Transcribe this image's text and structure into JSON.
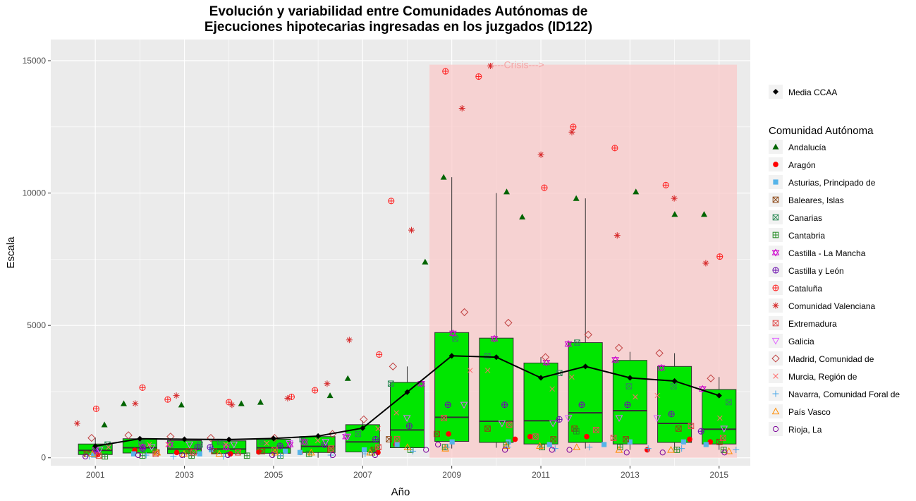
{
  "title_line1": "Evolución y variabilidad entre Comunidades Autónomas de",
  "title_line2": "Ejecuciones hipotecarias ingresadas en los juzgados (ID122)",
  "colors": {
    "panel": "#ebebeb",
    "grid": "#ffffff",
    "box_fill": "#00e600",
    "crisis_fill": "#f9c9c9",
    "mean_line": "#000000"
  },
  "chart_data": {
    "type": "box",
    "xlabel": "Año",
    "ylabel": "Escala",
    "x_tick_labels": [
      "2001",
      "2003",
      "2005",
      "2007",
      "2009",
      "2011",
      "2013",
      "2015"
    ],
    "y_tick_labels": [
      "0",
      "5000",
      "10000",
      "15000"
    ],
    "xlim": [
      2000.0,
      2015.7
    ],
    "ylim": [
      -300,
      15800
    ],
    "grid": true,
    "crisis": {
      "label": "<---Crisis--->",
      "x_start": 2008.5,
      "x_end": 2015.4,
      "y_top": 14850
    },
    "years": [
      2001,
      2002,
      2003,
      2004,
      2005,
      2006,
      2007,
      2008,
      2009,
      2010,
      2011,
      2012,
      2013,
      2014,
      2015
    ],
    "boxes": [
      {
        "year": 2001,
        "q1": 120,
        "median": 280,
        "q3": 520,
        "low": 0,
        "high": 770
      },
      {
        "year": 2002,
        "q1": 180,
        "median": 380,
        "q3": 720,
        "low": 0,
        "high": 770
      },
      {
        "year": 2003,
        "q1": 160,
        "median": 330,
        "q3": 650,
        "low": 0,
        "high": 770
      },
      {
        "year": 2004,
        "q1": 160,
        "median": 330,
        "q3": 640,
        "low": 0,
        "high": 740
      },
      {
        "year": 2005,
        "q1": 170,
        "median": 380,
        "q3": 700,
        "low": 0,
        "high": 770
      },
      {
        "year": 2006,
        "q1": 200,
        "median": 430,
        "q3": 800,
        "low": 0,
        "high": 880
      },
      {
        "year": 2007,
        "q1": 220,
        "median": 600,
        "q3": 1250,
        "low": 0,
        "high": 1400
      },
      {
        "year": 2008,
        "q1": 380,
        "median": 1050,
        "q3": 2850,
        "low": 300,
        "high": 3450
      },
      {
        "year": 2009,
        "q1": 620,
        "median": 1530,
        "q3": 4730,
        "low": 350,
        "high": 10600
      },
      {
        "year": 2010,
        "q1": 580,
        "median": 1380,
        "q3": 4520,
        "low": 380,
        "high": 10000
      },
      {
        "year": 2011,
        "q1": 520,
        "median": 1400,
        "q3": 3580,
        "low": 380,
        "high": 3800
      },
      {
        "year": 2012,
        "q1": 580,
        "median": 1700,
        "q3": 4350,
        "low": 350,
        "high": 9800
      },
      {
        "year": 2013,
        "q1": 520,
        "median": 1780,
        "q3": 3680,
        "low": 300,
        "high": 4000
      },
      {
        "year": 2014,
        "q1": 580,
        "median": 1300,
        "q3": 3450,
        "low": 320,
        "high": 3950
      },
      {
        "year": 2015,
        "q1": 520,
        "median": 1080,
        "q3": 2580,
        "low": 300,
        "high": 3050
      }
    ],
    "mean_series": {
      "name": "Media CCAA",
      "values": [
        440,
        720,
        700,
        690,
        730,
        820,
        1120,
        2480,
        3850,
        3800,
        3020,
        3450,
        3020,
        2900,
        2350
      ]
    },
    "legend": {
      "title": "Comunidad Autónoma",
      "position": "right"
    },
    "series": [
      {
        "name": "Andalucía",
        "marker": "triangle",
        "color": "#006400",
        "values": [
          1250,
          2050,
          2000,
          2050,
          2100,
          2350,
          3000,
          7400,
          10600,
          10050,
          9100,
          9800,
          10050,
          9200,
          9200
        ]
      },
      {
        "name": "Aragón",
        "marker": "dot",
        "color": "#ff0000",
        "values": [
          120,
          280,
          200,
          150,
          220,
          200,
          200,
          500,
          900,
          700,
          800,
          800,
          300,
          700,
          600
        ]
      },
      {
        "name": "Asturias, Principado de",
        "marker": "square",
        "color": "#56b4e9",
        "values": [
          100,
          150,
          150,
          300,
          250,
          200,
          300,
          500,
          600,
          600,
          500,
          500,
          600,
          600,
          500
        ]
      },
      {
        "name": "Baleares, Islas",
        "marker": "square-x",
        "color": "#8b4513",
        "values": [
          150,
          200,
          250,
          250,
          250,
          300,
          300,
          700,
          900,
          1100,
          700,
          1100,
          700,
          1100,
          600
        ]
      },
      {
        "name": "Canarias",
        "marker": "square-x",
        "color": "#2e8b57",
        "values": [
          500,
          600,
          500,
          600,
          600,
          700,
          900,
          2800,
          4500,
          3850,
          3200,
          4350,
          2700,
          2700,
          2100
        ]
      },
      {
        "name": "Cantabria",
        "marker": "square-plus",
        "color": "#228b22",
        "values": [
          50,
          80,
          80,
          80,
          80,
          150,
          200,
          300,
          400,
          500,
          400,
          1000,
          400,
          300,
          300
        ]
      },
      {
        "name": "Castilla - La Mancha",
        "marker": "star6",
        "color": "#cc00cc",
        "values": [
          300,
          400,
          500,
          400,
          500,
          600,
          800,
          2800,
          4700,
          4500,
          3600,
          4300,
          3700,
          3400,
          2600
        ]
      },
      {
        "name": "Castilla y León",
        "marker": "circle-plus",
        "color": "#6a0dad",
        "values": [
          250,
          350,
          400,
          400,
          450,
          500,
          700,
          1200,
          2000,
          2000,
          1450,
          2000,
          2000,
          1650,
          1000
        ]
      },
      {
        "name": "Cataluña",
        "marker": "circle-plus",
        "color": "#ff2020",
        "values": [
          1850,
          2650,
          2200,
          2100,
          2300,
          2550,
          3900,
          9700,
          14600,
          14400,
          10200,
          12500,
          11700,
          10300,
          7600
        ]
      },
      {
        "name": "Comunidad Valenciana",
        "marker": "asterisk",
        "color": "#d62728",
        "values": [
          1300,
          2050,
          2350,
          2000,
          2250,
          2800,
          4450,
          8600,
          13200,
          14800,
          11450,
          12300,
          8400,
          9800,
          7350
        ]
      },
      {
        "name": "Extremadura",
        "marker": "square-x",
        "color": "#e05050",
        "values": [
          80,
          150,
          200,
          200,
          300,
          350,
          400,
          700,
          1500,
          1250,
          800,
          1050,
          750,
          1200,
          750
        ]
      },
      {
        "name": "Galicia",
        "marker": "triangle-down",
        "color": "#e066ff",
        "values": [
          300,
          400,
          500,
          500,
          550,
          600,
          800,
          1500,
          2000,
          1300,
          1300,
          1500,
          1500,
          1500,
          1100
        ]
      },
      {
        "name": "Madrid, Comunidad de",
        "marker": "diamond",
        "color": "#c04040",
        "values": [
          750,
          850,
          800,
          750,
          750,
          900,
          1450,
          3450,
          5500,
          5100,
          3800,
          4650,
          4150,
          3950,
          3000
        ]
      },
      {
        "name": "Murcia, Región de",
        "marker": "cross",
        "color": "#ff6a6a",
        "values": [
          400,
          500,
          500,
          500,
          550,
          650,
          1100,
          1700,
          3300,
          3300,
          2600,
          3050,
          2300,
          2350,
          1500
        ]
      },
      {
        "name": "Navarra, Comunidad Foral de",
        "marker": "plus",
        "color": "#4aa8e8",
        "values": [
          50,
          100,
          50,
          50,
          80,
          100,
          150,
          250,
          400,
          400,
          350,
          400,
          350,
          350,
          300
        ]
      },
      {
        "name": "País Vasco",
        "marker": "triangle-open",
        "color": "#ff8c00",
        "values": [
          150,
          200,
          150,
          150,
          200,
          200,
          200,
          400,
          350,
          450,
          450,
          400,
          300,
          300,
          250
        ]
      },
      {
        "name": "Rioja, La",
        "marker": "circle-open",
        "color": "#7a0099",
        "values": [
          50,
          100,
          100,
          100,
          100,
          100,
          100,
          300,
          500,
          300,
          300,
          300,
          200,
          200,
          200
        ]
      }
    ]
  }
}
